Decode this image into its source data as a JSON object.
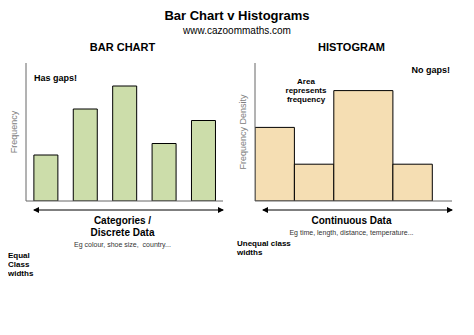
{
  "title": "Bar Chart v Histograms",
  "subtitle": "www.cazoommaths.com",
  "chart_data": [
    {
      "type": "bar",
      "title": "BAR CHART",
      "categories": [
        null,
        null,
        null,
        null,
        null
      ],
      "values": [
        2,
        4,
        5,
        2.5,
        3.5
      ],
      "color": "#CCDDAA",
      "ylim": [
        0,
        6
      ],
      "yticks": [],
      "ylabel": "Frequency",
      "xlabel": "Categories /\nDiscrete Data",
      "annotations": [
        "Has gaps!",
        "Eg colour, shoe size,  country...",
        "Equal\nClass\nwidths"
      ],
      "grid": false,
      "tick_labels": false
    },
    {
      "type": "histogram",
      "title": "HISTOGRAM",
      "bins": [
        0,
        2,
        4,
        7,
        9
      ],
      "values": [
        4,
        2,
        6,
        2
      ],
      "color": "#F5DEB3",
      "xlim": [
        0,
        10
      ],
      "xticks": [],
      "ylim": [
        0,
        7.5
      ],
      "yticks": [],
      "ylabel": "Frequency Density",
      "xlabel": "Continuous Data",
      "annotations": [
        "No gaps!",
        "Area\nrepresents\nfrequency",
        "Eg time, length, distance, temperature...",
        "Unequal class\nwidths"
      ],
      "grid": false,
      "tick_labels": false
    }
  ]
}
